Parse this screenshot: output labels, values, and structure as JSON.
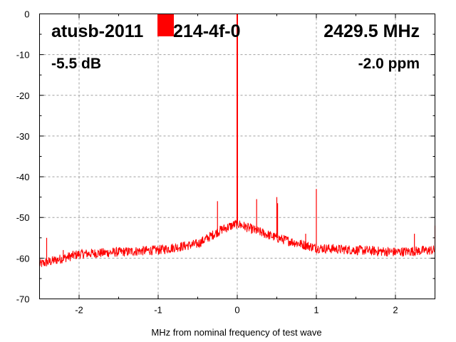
{
  "chart_data": {
    "type": "line",
    "title_left": "atusb-2011",
    "title_right_fragment": "214-4f-0",
    "frequency_label": "2429.5 MHz",
    "level_label": "-5.5 dB",
    "ppm_label": "-2.0 ppm",
    "xlabel": "MHz from nominal frequency of test wave",
    "ylabel": "",
    "xlim": [
      -2.5,
      2.5
    ],
    "ylim": [
      -70,
      0
    ],
    "xticks": [
      "-2",
      "-1",
      "0",
      "1",
      "2"
    ],
    "xtick_values": [
      -2,
      -1,
      0,
      1,
      2
    ],
    "yticks": [
      "0",
      "-10",
      "-20",
      "-30",
      "-40",
      "-50",
      "-60",
      "-70"
    ],
    "ytick_values": [
      0,
      -10,
      -20,
      -30,
      -40,
      -50,
      -60,
      -70
    ],
    "grid": true,
    "series_color": "#ff0000",
    "noise_floor": {
      "x": [
        -2.5,
        -2.0,
        -1.5,
        -1.0,
        -0.5,
        -0.2,
        0.0,
        0.2,
        0.5,
        0.8,
        1.0,
        1.5,
        2.0,
        2.5
      ],
      "y": [
        -61.5,
        -59,
        -58.5,
        -58,
        -56.5,
        -53,
        -51.5,
        -53,
        -55,
        -56.5,
        -57.5,
        -58,
        -58.5,
        -58
      ]
    },
    "spikes": {
      "x": [
        -2.41,
        -2.2,
        -0.25,
        0.0,
        0.245,
        0.5,
        0.51,
        0.865,
        1.0,
        2.24,
        2.5
      ],
      "y": [
        -55,
        -58,
        -46,
        0,
        -45.5,
        -45,
        -46.5,
        -54,
        -43,
        -54,
        -52
      ]
    },
    "overlay_marker_color": "#ff0000"
  }
}
